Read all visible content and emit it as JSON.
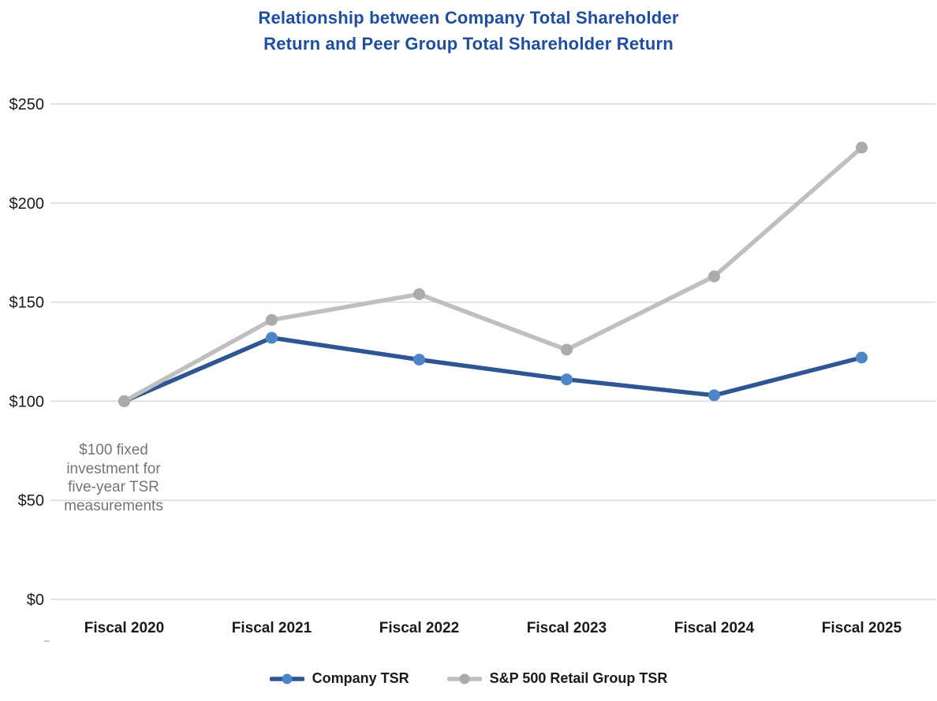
{
  "title": {
    "line1": "Relationship between Company Total Shareholder",
    "line2": "Return and Peer Group Total Shareholder Return"
  },
  "annotation": "$100 fixed investment for five-year TSR measurements",
  "colors": {
    "title_text": "#1D4EA0",
    "axis_text": "#1a1a1a",
    "annotation_text": "#757575",
    "gridline": "#DADADA"
  },
  "chart_data": {
    "type": "line",
    "categories": [
      "Fiscal 2020",
      "Fiscal 2021",
      "Fiscal 2022",
      "Fiscal 2023",
      "Fiscal 2024",
      "Fiscal 2025"
    ],
    "series": [
      {
        "name": "Company TSR",
        "values": [
          100,
          132,
          121,
          111,
          103,
          122
        ],
        "line_color": "#2F5693",
        "marker_color": "#4C86C8"
      },
      {
        "name": "S&P 500 Retail Group TSR",
        "values": [
          100,
          141,
          154,
          126,
          163,
          228
        ],
        "line_color": "#BFBFBF",
        "marker_color": "#ABABAB"
      }
    ],
    "y_ticks": [
      0,
      50,
      100,
      150,
      200,
      250
    ],
    "y_tick_labels": [
      "$0",
      "$50",
      "$100",
      "$150",
      "$200",
      "$250"
    ],
    "ylim": [
      0,
      250
    ],
    "grid": true,
    "legend_position": "bottom"
  }
}
